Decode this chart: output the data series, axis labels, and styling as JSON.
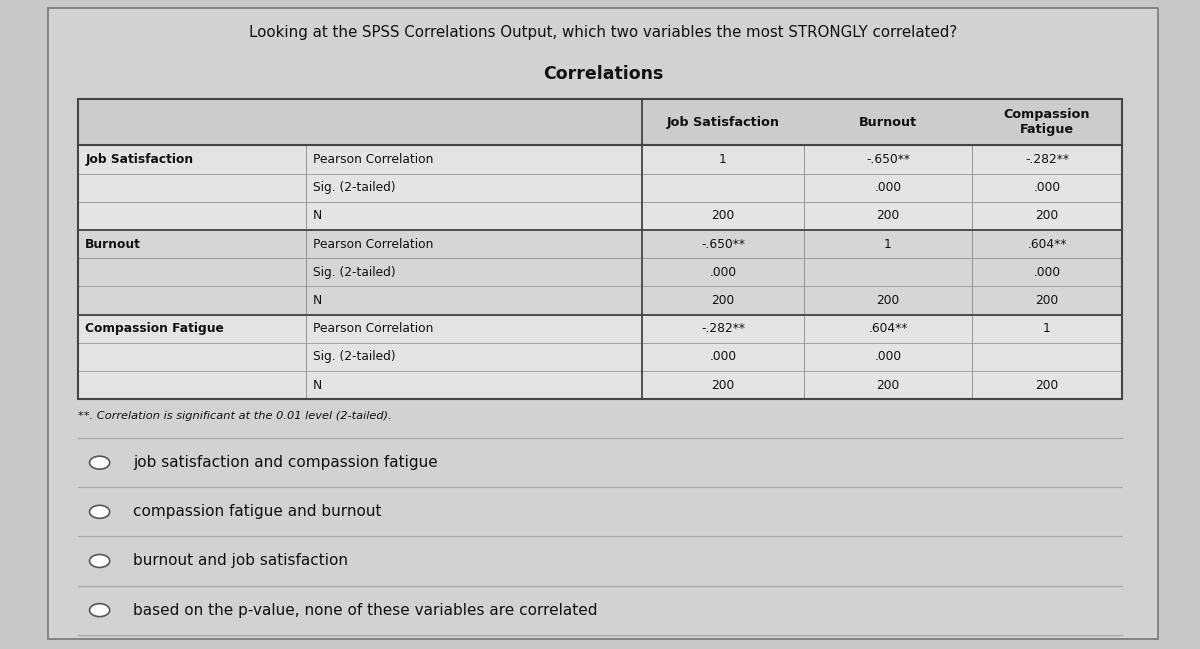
{
  "title_question": "Looking at the SPSS Correlations Output, which two variables the most STRONGLY correlated?",
  "table_title": "Correlations",
  "rows": [
    [
      "Job Satisfaction",
      "Pearson Correlation",
      "1",
      "-.650**",
      "-.282**"
    ],
    [
      "",
      "Sig. (2-tailed)",
      "",
      ".000",
      ".000"
    ],
    [
      "",
      "N",
      "200",
      "200",
      "200"
    ],
    [
      "Burnout",
      "Pearson Correlation",
      "-.650**",
      "1",
      ".604**"
    ],
    [
      "",
      "Sig. (2-tailed)",
      ".000",
      "",
      ".000"
    ],
    [
      "",
      "N",
      "200",
      "200",
      "200"
    ],
    [
      "Compassion Fatigue",
      "Pearson Correlation",
      "-.282**",
      ".604**",
      "1"
    ],
    [
      "",
      "Sig. (2-tailed)",
      ".000",
      ".000",
      ""
    ],
    [
      "",
      "N",
      "200",
      "200",
      "200"
    ]
  ],
  "footnote": "**. Correlation is significant at the 0.01 level (2-tailed).",
  "options": [
    "job satisfaction and compassion fatigue",
    "compassion fatigue and burnout",
    "burnout and job satisfaction",
    "based on the p-value, none of these variables are correlated"
  ],
  "outer_bg": "#c8c8c8",
  "inner_bg": "#d8d8d8",
  "table_row_even": "#e2e2e2",
  "table_row_odd": "#d4d4d4",
  "table_header_bg": "#d0d0d0",
  "border_dark": "#444444",
  "border_light": "#999999",
  "text_color": "#111111"
}
